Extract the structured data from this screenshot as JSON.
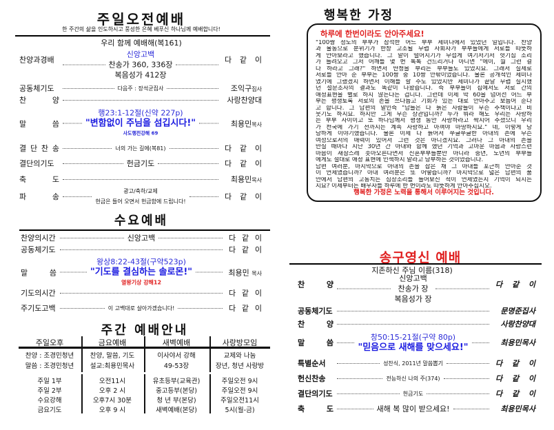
{
  "sunday": {
    "title": "주일오전예배",
    "subtitle": "한 주간의 삶을 인도하시고 풍성한 은혜 베푸신 하나님께 예배합니다!",
    "opening": "우리 함께 예배해(복161)",
    "rows": [
      {
        "label": "찬양과경배",
        "center": [
          "신앙고백",
          "찬송가 360, 336장",
          "복음성가 412장"
        ],
        "right": "다 같 이",
        "right_small": ""
      },
      {
        "label": "공동체기도",
        "center": [
          "다음주 : 장석균집사"
        ],
        "right": "조익구",
        "right_small": "집사"
      },
      {
        "label": "찬 양",
        "center": [],
        "right": "사랑찬양대",
        "right_small": ""
      },
      {
        "label": "말 씀",
        "center": [
          "행23:1-12절(신약 227p)",
          "\"변함없이 주님을 섬깁시다!\"",
          "사도행전강해 69"
        ],
        "right": "최용민",
        "right_small": "목사"
      },
      {
        "label": "결 단 찬 송",
        "center": [
          "너의 가는 길에(복81)"
        ],
        "right": "다 같 이",
        "right_small": ""
      },
      {
        "label": "결단의기도",
        "center": [
          "헌금기도"
        ],
        "right": "다 같 이",
        "right_small": ""
      },
      {
        "label": "축 도",
        "center": [],
        "right": "최용민",
        "right_small": "목사"
      },
      {
        "label": "파 송",
        "center": [
          "광고/축하/교제",
          "헌금은 들어 오면서 헌금함에 드립니다!"
        ],
        "right": "다 같 이",
        "right_small": ""
      }
    ]
  },
  "wednesday": {
    "title": "수요예배",
    "rows": [
      {
        "label": "찬양의시간",
        "center": [
          "신앙고백"
        ],
        "right": "다 같 이",
        "right_small": ""
      },
      {
        "label": "공동체기도",
        "center": [],
        "right": "다 같 이",
        "right_small": ""
      },
      {
        "label": "말 씀",
        "center": [
          "왕상8:22-43절(구약523p)",
          "\"기도를 결심하는 솔로몬!\"",
          "열왕기상 강해12"
        ],
        "right": "최용민 ",
        "right_small": "목사"
      },
      {
        "label": "기도의시간",
        "center": [],
        "right": "다 같 이",
        "right_small": ""
      },
      {
        "label": "주기도고백",
        "center": [
          "이 고백대로 살아가겠습니다!"
        ],
        "right": "다 같 이",
        "right_small": ""
      }
    ]
  },
  "weekly": {
    "title": "주간  예배안내",
    "headers": [
      "주일오후",
      "금요예배",
      "새벽예배",
      "사랑방모임"
    ],
    "row1": [
      [
        "찬양 : 조경민청년",
        "말씀 : 조경민청년"
      ],
      [
        "찬양, 말씀, 기도",
        "설교:최용민목사"
      ],
      [
        "이사야서 강해",
        "49-53장"
      ],
      [
        "교제와 나눔",
        "장년, 청년 사랑방"
      ]
    ],
    "row2": [
      [
        "주일 1부",
        "주일 2부",
        "수요강해",
        "금요기도"
      ],
      [
        "오전11시",
        "오후 2 시",
        "오후7시 30분",
        "오후 9 시"
      ],
      [
        "유초등부(교육관)",
        "중고등부(본당)",
        "청 년 부(본당)",
        "새벽예배(본당)"
      ],
      [
        "주일오전 9시",
        "주일오전 9시",
        "주일오전11시",
        "5시(월-금)"
      ]
    ]
  },
  "family": {
    "title": "행복한 가정",
    "heading": "하루에 한번이라도 안아주세요!",
    "lines": [
      "\"100쌍 정도의 부부가 참석한 어느 부부 세미나에서 있었던 일입니다. 찬양",
      "과 율동으로 분위기가 한창 고조될 무렵 사회자가 부부들에게 서로를 따뜻하",
      "게 안아보라고 했습니다. 그 말이 떨어지기가 무섭게 여기저기서 헛기침 소리",
      "가 들려오고 그저 어깨를 몇 번 톡톡 건드리거나 아니면 \"에이, 뭘 그런 걸",
      "다 하라고 그래?\" 하면서 딴청을 부리는 부부들도 있었지요. 그래서 실제로",
      "서로를 안아 준 부부는 100쌍 중 10쌍 안팎이었습니다. 물론 공개적인 세미나",
      "였기에 그랬겠지 하면서 이해를 할 수도 있었지만 세미나가 끝날 무렵 실시했",
      "던 설문조사의 결과도 똑같이 나왔습니다. 즉 부부들이 집에서도 서로 간의",
      "애정표현을 별로 하지 않는다는 겁니다. 그런데 이제 막 60을 넘어선 어느 부",
      "부는 평생토록 서로의 손을 쓰다듬고 기회가 있는 대로 안아주고 보듬어 준다",
      "고 합니다. 그 남편의 말인즉 \"남들은 다 늙은 사람들이 무슨 주책이냐고 비",
      "웃기도 하지요. 하지만 그게 무슨 상관입니까? 누가 뭐라 해도 우리는 사랑하",
      "는 부부 사이이고 또 하나님께서 평생 동안 사랑하라고 짝지어 주셨으니 우리",
      "가 천국에 가기 전까지는 계속 사랑하고 아껴야 마땅하지요.\" 네, 이렇게 당",
      "당하게 이야기했습니다. 물론 이제 다 늙어서 쭈글쭈글한 아내의 손에 무슨",
      "여성으로서의 매력이 있어서 그런 것은 아니겠지요. 그러나 그 아내의 손을",
      "만질 때마다 지난 30년 간 아내와 함께 했던 기억과 고마운 마음과 사랑스런",
      "마음이 새삼스레 솟아오른다면서 신혼부부들뿐만 아니라 중년, 노년의 부부들",
      "에게도 절대로 애정 표현에 인색하지 말라고 당부하는 것이었습니다.",
      " 남편 여러분, 마지막으로 아내의 손을 잡은 채 그 아내를 포근히 안아준 것",
      "이 언제였습니까? 아내 여러분은 또 어떻습니까? 마지막으로 넓은 남편의 품",
      "안에서 남편의 고동치는 심장소리를 들어보신 적이 언제였는지 기억이 되시는",
      "지요? 이제부터는 배우자를 하루에 한 번이라도 따뜻하게 안아주십시오."
    ],
    "footer": "행복한 가정은 노력을 통해서 이루어지는 것입니다."
  },
  "newyear": {
    "title": "송구영신 예배",
    "opening": "지존하신 주님 이름(318)",
    "rows": [
      {
        "label": "찬 양",
        "center": [
          "신앙고백",
          "찬송가 장",
          "복음성가  장"
        ],
        "right": "다 같 이",
        "right_small": ""
      },
      {
        "label": "공동체기도",
        "center": [],
        "right": "문명준집사",
        "right_small": ""
      },
      {
        "label": "찬 양",
        "center": [],
        "right": "사랑찬양대",
        "right_small": ""
      },
      {
        "label": "말 씀",
        "center": [
          "창50:15-21절(구약 80p)",
          "\"믿음으로 새해를 맞으세요!\""
        ],
        "right": "최용민목사",
        "right_small": ""
      },
      {
        "label": "특별순서",
        "center": [
          "성찬식, 2011년 말씀뽑기"
        ],
        "right": "다 같 이",
        "right_small": ""
      },
      {
        "label": "헌신찬송",
        "center": [
          "전능하신 나의 주(374)"
        ],
        "right": "다 같 이",
        "right_small": ""
      },
      {
        "label": "결단의기도",
        "center": [
          "헌금기도"
        ],
        "right": "다 같 이",
        "right_small": ""
      },
      {
        "label": "축 도",
        "center": [
          "새해 복 많이 받으세요!"
        ],
        "right": "최용민목사",
        "right_small": ""
      }
    ]
  },
  "colors": {
    "accent_red": "#e02020",
    "scripture_blue": "#1a1ae0"
  }
}
